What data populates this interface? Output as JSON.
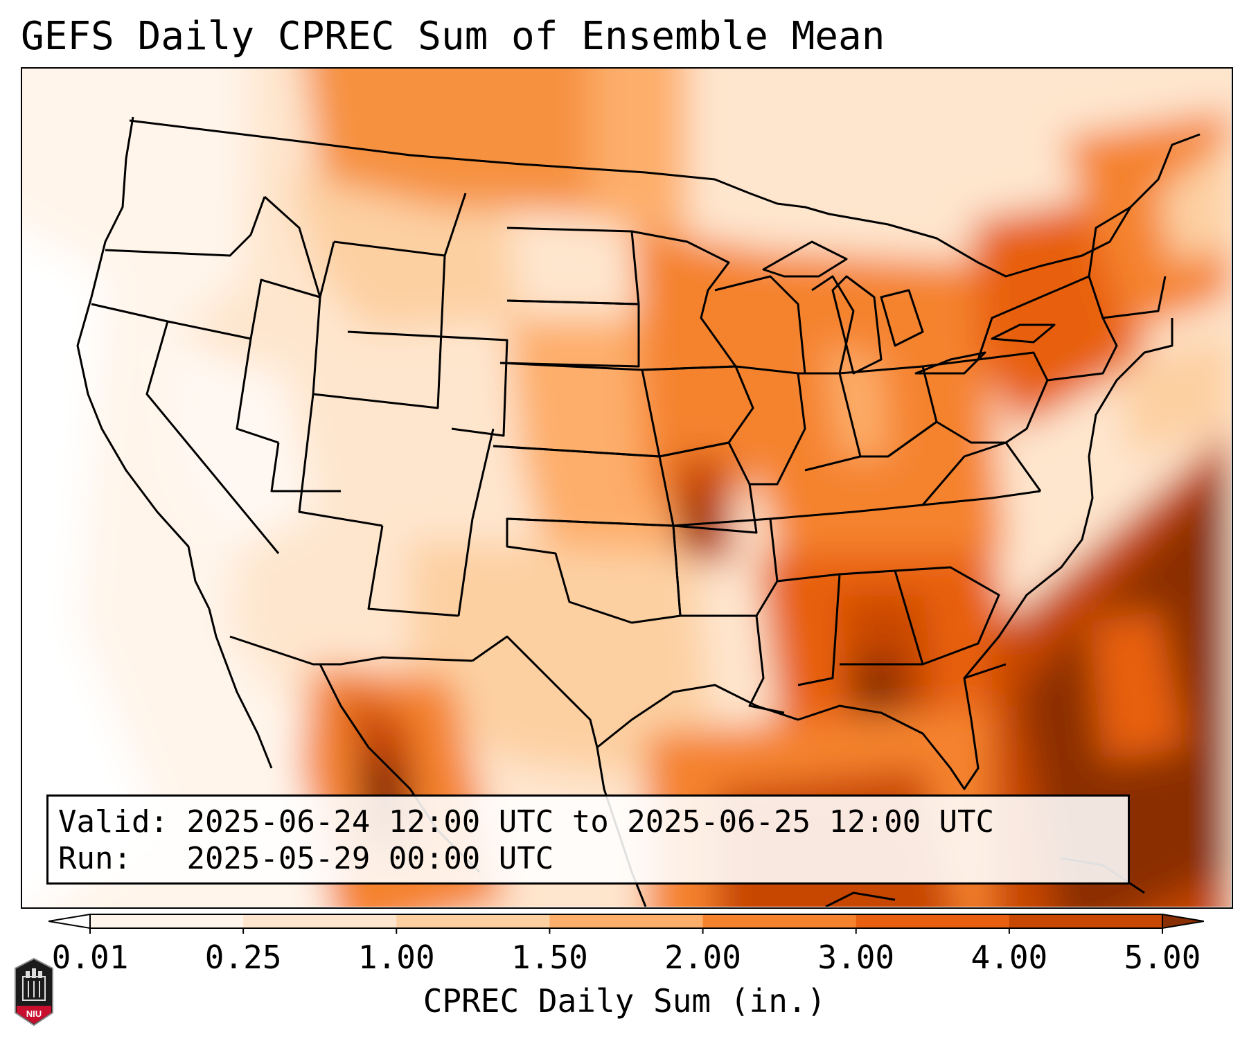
{
  "title": "GEFS Daily CPREC Sum of Ensemble Mean",
  "info": {
    "valid_label": "Valid:",
    "valid_value": "2025-06-24 12:00 UTC to 2025-06-25 12:00 UTC",
    "run_label": "Run:",
    "run_value": "2025-05-29 00:00 UTC"
  },
  "colorbar": {
    "label": "CPREC Daily Sum (in.)",
    "ticks": [
      "0.01",
      "0.25",
      "1.00",
      "1.50",
      "2.00",
      "3.00",
      "4.00",
      "5.00"
    ],
    "colors": [
      "#fff5eb",
      "#fee6ce",
      "#fdd0a2",
      "#fdae6b",
      "#f5832e",
      "#e8600f",
      "#c84702"
    ],
    "under_color": "#ffffff",
    "over_color": "#8a2e03"
  },
  "logo": {
    "text": "NIU",
    "color": "#c8102e"
  }
}
